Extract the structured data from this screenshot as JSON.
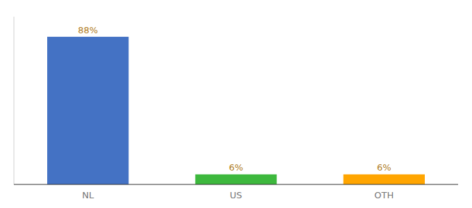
{
  "chart_data": {
    "type": "bar",
    "categories": [
      "NL",
      "US",
      "OTH"
    ],
    "values": [
      88,
      6,
      6
    ],
    "value_labels": [
      "88%",
      "6%",
      "6%"
    ],
    "colors": [
      "#4472C4",
      "#3DB83D",
      "#FFA500"
    ],
    "ylim": [
      0,
      100
    ],
    "data_labels": true,
    "tick_labels": "x"
  }
}
